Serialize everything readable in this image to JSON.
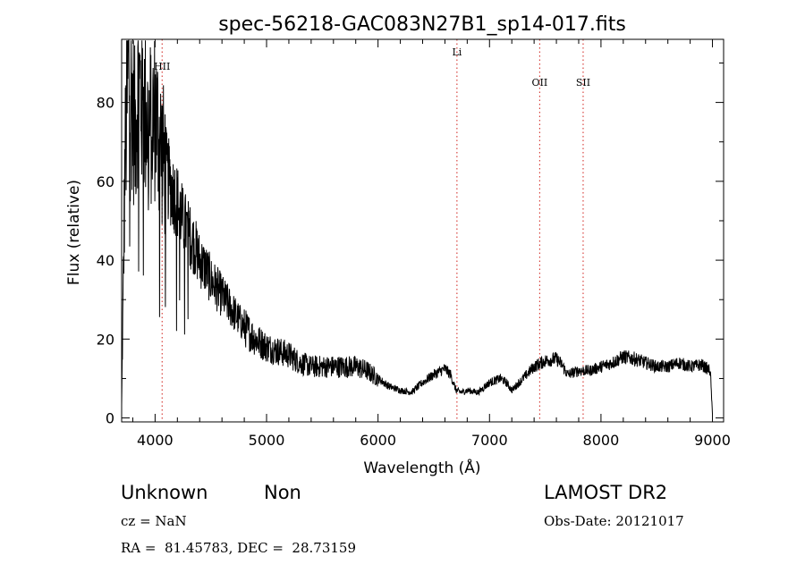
{
  "chart_data": {
    "type": "line",
    "title": "spec-56218-GAC083N27B1_sp14-017.fits",
    "xlabel": "Wavelength (Å)",
    "ylabel": "Flux (relative)",
    "xlim": [
      3700,
      9100
    ],
    "ylim": [
      -1,
      96
    ],
    "xticks": [
      4000,
      5000,
      6000,
      7000,
      8000,
      9000
    ],
    "yticks": [
      0,
      20,
      40,
      60,
      80
    ],
    "grid": false,
    "series": [
      {
        "x": [
          3700,
          3730,
          3760,
          3790,
          3820,
          3850,
          3880,
          3910,
          3940,
          3970,
          4000,
          4030,
          4060,
          4100,
          4150,
          4200,
          4250,
          4300,
          4350,
          4400,
          4450,
          4500,
          4550,
          4600,
          4650,
          4700,
          4750,
          4800,
          4900,
          5000,
          5100,
          5200,
          5300,
          5400,
          5500,
          5600,
          5700,
          5800,
          5900,
          6000,
          6100,
          6200,
          6300,
          6400,
          6500,
          6600,
          6650,
          6700,
          6750,
          6800,
          6900,
          7000,
          7100,
          7150,
          7200,
          7300,
          7400,
          7500,
          7600,
          7650,
          7700,
          7800,
          7900,
          8000,
          8100,
          8200,
          8300,
          8400,
          8500,
          8600,
          8700,
          8800,
          8900,
          8980,
          9000
        ],
        "y": [
          3,
          65,
          88,
          82,
          72,
          86,
          80,
          78,
          74,
          75,
          77,
          72,
          68,
          62,
          58,
          55,
          50,
          47,
          44,
          40,
          38,
          35,
          33,
          31,
          29,
          27,
          25,
          23,
          20,
          18,
          17,
          16,
          14,
          13,
          13,
          13,
          13,
          13,
          12,
          10,
          8,
          7,
          6.5,
          9,
          11,
          12.5,
          11,
          7,
          6.5,
          7,
          6.5,
          9,
          10,
          9,
          7,
          10,
          13,
          14.5,
          15,
          13.5,
          11,
          12,
          12,
          13,
          14,
          15.5,
          15,
          14,
          13,
          13,
          14,
          13,
          13.5,
          12,
          1
        ]
      }
    ],
    "spectral_lines": [
      {
        "label": "HII",
        "x": 4063
      },
      {
        "label": "Li",
        "x": 6708
      },
      {
        "label": "OII",
        "x": 7450
      },
      {
        "label": "SII",
        "x": 7840
      }
    ]
  },
  "info": {
    "class": "Unknown",
    "subclass": "Non",
    "survey": "LAMOST DR2",
    "cz": "cz = NaN",
    "obs_date": "Obs-Date: 20121017",
    "coords": "RA =  81.45783, DEC =  28.73159"
  }
}
